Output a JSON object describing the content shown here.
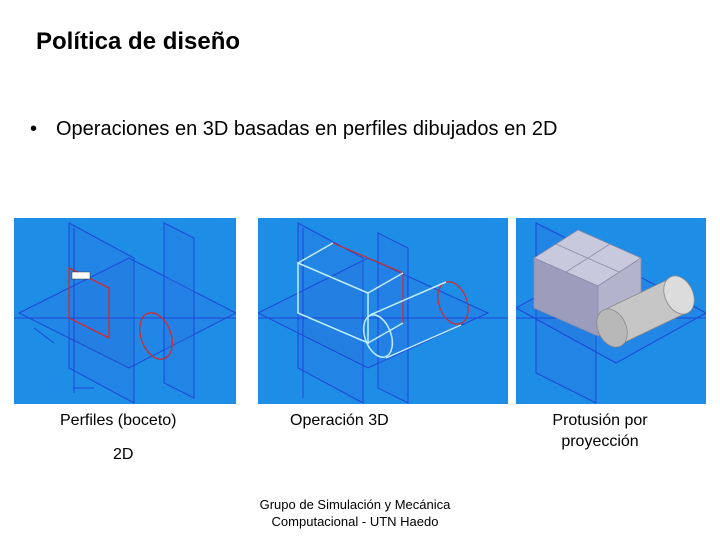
{
  "slide": {
    "title": "Política de diseño",
    "bullet": "Operaciones en 3D basadas en perfiles dibujados en 2D"
  },
  "panels": [
    {
      "caption": "Perfiles (boceto)",
      "caption_extra": "2D"
    },
    {
      "caption": "Operación 3D"
    },
    {
      "caption": "Protusión por proyección"
    }
  ],
  "footer": {
    "line1": "Grupo de Simulación y Mecánica",
    "line2": "Computacional - UTN Haedo"
  },
  "colors": {
    "panel_bg": "#1e8de6",
    "plane_line": "#1f3fd6",
    "sketch_red": "#d22a2a",
    "extrude_cyan": "#bfefff",
    "solid_gray": "#a9a9c4"
  }
}
